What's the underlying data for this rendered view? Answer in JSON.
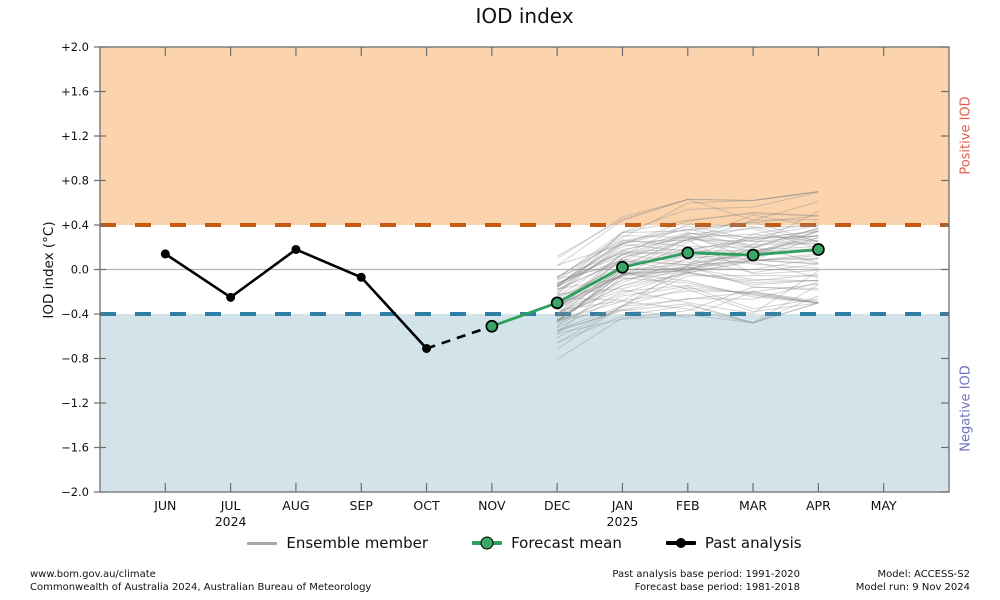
{
  "title": "IOD index",
  "y_axis": {
    "label": "IOD index (°C)",
    "tick_values": [
      2.0,
      1.6,
      1.2,
      0.8,
      0.4,
      0.0,
      -0.4,
      -0.8,
      -1.2,
      -1.6,
      -2.0
    ],
    "tick_labels": [
      "+2.0",
      "+1.6",
      "+1.2",
      "+0.8",
      "+0.4",
      "0.0",
      "−0.4",
      "−0.8",
      "−1.2",
      "−1.6",
      "−2.0"
    ]
  },
  "x_axis": {
    "months": [
      "JUN",
      "JUL",
      "AUG",
      "SEP",
      "OCT",
      "NOV",
      "DEC",
      "JAN",
      "FEB",
      "MAR",
      "APR",
      "MAY"
    ],
    "year_labels": [
      {
        "text": "2024",
        "month": "JUL"
      },
      {
        "text": "2025",
        "month": "JAN"
      }
    ]
  },
  "regions": {
    "positive": {
      "label": "Positive IOD",
      "threshold": 0.4,
      "band_fill": "#fbd3ac",
      "line_color": "#c55a11",
      "label_color": "#e25c4a"
    },
    "negative": {
      "label": "Negative IOD",
      "threshold": -0.4,
      "band_fill": "#d2e4e9",
      "line_color": "#2d7fa4",
      "label_color": "#6f72be"
    }
  },
  "chart_data": {
    "type": "line",
    "title": "IOD index",
    "ylabel": "IOD index (°C)",
    "ylim": [
      -2.0,
      2.0
    ],
    "categories": [
      "JUN",
      "JUL",
      "AUG",
      "SEP",
      "OCT",
      "NOV",
      "DEC",
      "JAN",
      "FEB",
      "MAR",
      "APR",
      "MAY"
    ],
    "grid": "zero-line-only",
    "legend_position": "below",
    "series": [
      {
        "name": "Past analysis",
        "type": "line-markers",
        "color": "#000000",
        "style": "solid",
        "months": [
          "JUN",
          "JUL",
          "AUG",
          "SEP",
          "OCT"
        ],
        "values": [
          0.14,
          -0.25,
          0.18,
          -0.07,
          -0.71
        ]
      },
      {
        "name": "Past analysis to forecast transition",
        "type": "line",
        "color": "#000000",
        "style": "dashed",
        "months": [
          "OCT",
          "NOV"
        ],
        "values": [
          -0.71,
          -0.51
        ]
      },
      {
        "name": "Forecast mean",
        "type": "line-markers",
        "color": "#2f9e5f",
        "marker_fill": "#3aa768",
        "style": "solid",
        "months": [
          "NOV",
          "DEC",
          "JAN",
          "FEB",
          "MAR",
          "APR"
        ],
        "values": [
          -0.51,
          -0.3,
          0.02,
          0.15,
          0.13,
          0.18
        ]
      },
      {
        "name": "Ensemble member",
        "type": "plume",
        "color": "#8c8c8c",
        "opacity": 0.38,
        "count": 72,
        "months": [
          "DEC",
          "JAN",
          "FEB",
          "MAR",
          "APR"
        ],
        "mean": [
          -0.3,
          0.02,
          0.15,
          0.13,
          0.18
        ],
        "envelope_min": [
          -0.95,
          -0.75,
          -0.62,
          -0.48,
          -0.3
        ],
        "envelope_max": [
          0.18,
          0.55,
          0.63,
          0.62,
          0.7
        ]
      }
    ],
    "thresholds": {
      "positive_iod": 0.4,
      "negative_iod": -0.4
    }
  },
  "legend": {
    "items": [
      {
        "label": "Ensemble member",
        "swatch": "ensemble",
        "color": "#a6a6a6"
      },
      {
        "label": "Forecast mean",
        "swatch": "forecast",
        "color": "#2f9e5f",
        "marker_fill": "#3aa768"
      },
      {
        "label": "Past analysis",
        "swatch": "past",
        "color": "#000000"
      }
    ]
  },
  "footer": {
    "left_lines": [
      "www.bom.gov.au/climate",
      "Commonwealth of Australia 2024, Australian Bureau of Meteorology"
    ],
    "center_lines": [
      "Past analysis base period: 1991-2020",
      "Forecast base period: 1981-2018"
    ],
    "right_lines": [
      "Model: ACCESS-S2",
      "Model run: 9 Nov 2024"
    ]
  },
  "colors": {
    "spine": "#6e6e6e",
    "zero_gridline": "#b3b3b3",
    "tick_label": "#111111"
  }
}
